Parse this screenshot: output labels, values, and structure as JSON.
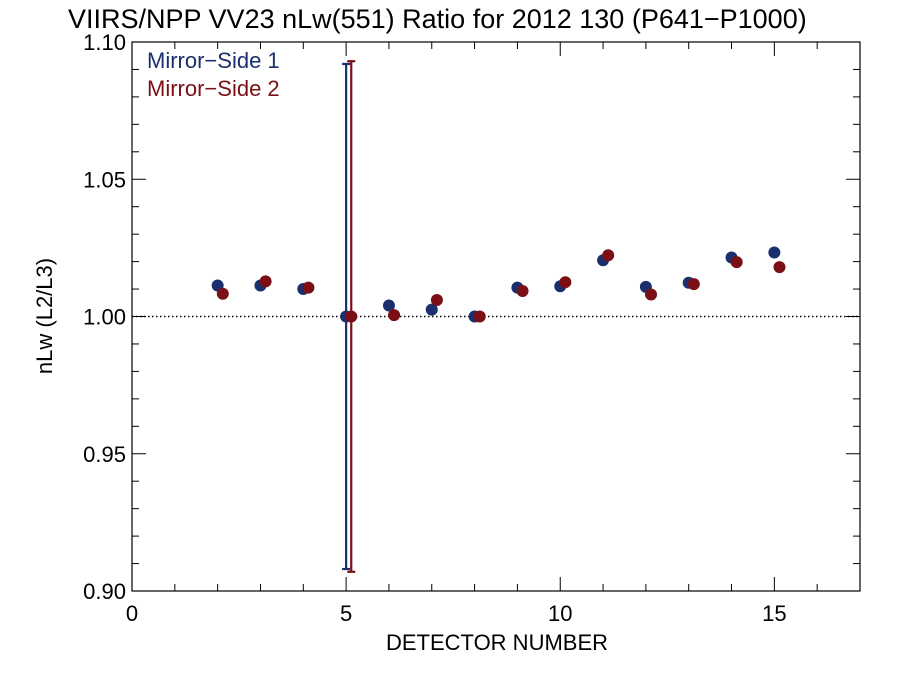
{
  "chart_data": {
    "type": "scatter",
    "title": "VIIRS/NPP VV23 nLw(551) Ratio for 2012 130 (P641−P1000)",
    "xlabel": "DETECTOR NUMBER",
    "ylabel": "nLw (L2/L3)",
    "xlim": [
      0,
      17
    ],
    "ylim": [
      0.9,
      1.1
    ],
    "xticks": [
      0,
      5,
      10,
      15
    ],
    "xtick_labels": [
      "0",
      "5",
      "10",
      "15"
    ],
    "yticks": [
      0.9,
      0.95,
      1.0,
      1.05,
      1.1
    ],
    "ytick_labels": [
      "0.90",
      "0.95",
      "1.00",
      "1.05",
      "1.10"
    ],
    "reference_line": 1.0,
    "legend_position": "top-left",
    "series": [
      {
        "name": "Mirror−Side 1",
        "color": "#1b2f6e",
        "x": [
          2,
          3,
          4,
          5,
          6,
          7,
          8,
          9,
          10,
          11,
          12,
          13,
          14,
          15
        ],
        "y": [
          1.0113,
          1.0113,
          1.01,
          1.0,
          1.004,
          1.0025,
          1.0,
          1.0105,
          1.011,
          1.0205,
          1.0108,
          1.0123,
          1.0215,
          1.0233
        ],
        "error_bars": [
          {
            "x": 5,
            "low": 0.908,
            "high": 1.092
          }
        ]
      },
      {
        "name": "Mirror−Side 2",
        "color": "#7a1016",
        "x": [
          2,
          3,
          4,
          5,
          6,
          7,
          8,
          9,
          10,
          11,
          12,
          13,
          14,
          15
        ],
        "y": [
          1.0083,
          1.0128,
          1.0105,
          1.0,
          1.0005,
          1.006,
          1.0,
          1.0093,
          1.0125,
          1.0223,
          1.008,
          1.0118,
          1.0198,
          1.018
        ],
        "error_bars": [
          {
            "x": 5,
            "low": 0.907,
            "high": 1.093
          }
        ]
      }
    ]
  }
}
